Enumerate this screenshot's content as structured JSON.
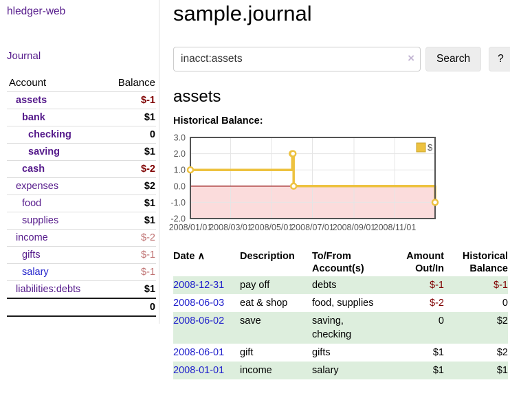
{
  "sidebar": {
    "brand": "hledger-web",
    "nav": [
      {
        "label": "Journal"
      }
    ],
    "accounts_table": {
      "col_account": "Account",
      "col_balance": "Balance",
      "rows": [
        {
          "name": "assets",
          "depth": 1,
          "bold": true,
          "name_color": "#551a8b",
          "balance": "$-1",
          "balance_color": "#7f0000",
          "balance_bold": true
        },
        {
          "name": "bank",
          "depth": 2,
          "bold": true,
          "name_color": "#551a8b",
          "balance": "$1",
          "balance_color": "#000000",
          "balance_bold": true
        },
        {
          "name": "checking",
          "depth": 3,
          "bold": true,
          "name_color": "#551a8b",
          "balance": "0",
          "balance_color": "#000000",
          "balance_bold": true
        },
        {
          "name": "saving",
          "depth": 3,
          "bold": true,
          "name_color": "#551a8b",
          "balance": "$1",
          "balance_color": "#000000",
          "balance_bold": true
        },
        {
          "name": "cash",
          "depth": 2,
          "bold": true,
          "name_color": "#551a8b",
          "balance": "$-2",
          "balance_color": "#7f0000",
          "balance_bold": true
        },
        {
          "name": "expenses",
          "depth": 1,
          "bold": false,
          "name_color": "#551a8b",
          "balance": "$2",
          "balance_color": "#000000",
          "balance_bold": true
        },
        {
          "name": "food",
          "depth": 2,
          "bold": false,
          "name_color": "#551a8b",
          "balance": "$1",
          "balance_color": "#000000",
          "balance_bold": true
        },
        {
          "name": "supplies",
          "depth": 2,
          "bold": false,
          "name_color": "#551a8b",
          "balance": "$1",
          "balance_color": "#000000",
          "balance_bold": true
        },
        {
          "name": "income",
          "depth": 1,
          "bold": false,
          "name_color": "#551a8b",
          "balance": "$-2",
          "balance_color": "#bf7171",
          "balance_bold": false
        },
        {
          "name": "gifts",
          "depth": 2,
          "bold": false,
          "name_color": "#551a8b",
          "balance": "$-1",
          "balance_color": "#bf7171",
          "balance_bold": false
        },
        {
          "name": "salary",
          "depth": 2,
          "bold": false,
          "name_color": "#2222cc",
          "balance": "$-1",
          "balance_color": "#bf7171",
          "balance_bold": false
        },
        {
          "name": "liabilities:debts",
          "depth": 1,
          "bold": false,
          "name_color": "#551a8b",
          "balance": "$1",
          "balance_color": "#000000",
          "balance_bold": true
        }
      ],
      "total": "0"
    }
  },
  "header": {
    "title": "sample.journal"
  },
  "search": {
    "query": "inacct:assets",
    "clear_icon": "×",
    "search_label": "Search",
    "help_label": "?"
  },
  "account_view": {
    "title": "assets",
    "chart_heading": "Historical Balance:"
  },
  "chart_data": {
    "type": "line",
    "step": true,
    "title": "Historical Balance",
    "xlim": [
      "2008-01-01",
      "2008-12-31"
    ],
    "ylim": [
      -2,
      3
    ],
    "x_ticks": [
      {
        "t": "2008-01-01",
        "label": "2008/01/01"
      },
      {
        "t": "2008-03-01",
        "label": "2008/03/01"
      },
      {
        "t": "2008-05-01",
        "label": "2008/05/01"
      },
      {
        "t": "2008-07-01",
        "label": "2008/07/01"
      },
      {
        "t": "2008-09-01",
        "label": "2008/09/01"
      },
      {
        "t": "2008-11-01",
        "label": "2008/11/01"
      }
    ],
    "y_ticks": [
      {
        "v": 3,
        "label": "3.0"
      },
      {
        "v": 2,
        "label": "2.0"
      },
      {
        "v": 1,
        "label": "1.0"
      },
      {
        "v": 0,
        "label": "0.0"
      },
      {
        "v": -1,
        "label": "-1.0"
      },
      {
        "v": -2,
        "label": "-2.0"
      }
    ],
    "series": [
      {
        "name": "$",
        "color": "#edc240",
        "marker_fill": "#ffffff",
        "points": [
          [
            "2008-01-01",
            1
          ],
          [
            "2008-06-01",
            2
          ],
          [
            "2008-06-02",
            2
          ],
          [
            "2008-06-03",
            0
          ],
          [
            "2008-12-31",
            -1
          ]
        ]
      }
    ],
    "legend": {
      "label": "$",
      "position": "top-right",
      "swatch_color": "#edc240",
      "swatch_border": "#c9a42c"
    },
    "colors": {
      "negative_region": "#fbdcdc",
      "zero_line": "#9c1f1f",
      "grid": "#e5e5e5",
      "border": "#545454",
      "labels": "#545454"
    }
  },
  "register": {
    "columns": [
      "Date",
      "Description",
      "To/From Account(s)",
      "Amount Out/In",
      "Historical Balance"
    ],
    "sort_icon": "∧",
    "rows": [
      {
        "date": "2008-12-31",
        "description": "pay off",
        "accounts": "debts",
        "amount": "$-1",
        "balance": "$-1",
        "shaded": true
      },
      {
        "date": "2008-06-03",
        "description": "eat & shop",
        "accounts": "food, supplies",
        "amount": "$-2",
        "balance": "0",
        "shaded": false
      },
      {
        "date": "2008-06-02",
        "description": "save",
        "accounts": "saving, checking",
        "amount": "0",
        "balance": "$2",
        "shaded": true
      },
      {
        "date": "2008-06-01",
        "description": "gift",
        "accounts": "gifts",
        "amount": "$1",
        "balance": "$2",
        "shaded": false
      },
      {
        "date": "2008-01-01",
        "description": "income",
        "accounts": "salary",
        "amount": "$1",
        "balance": "$1",
        "shaded": true
      }
    ]
  }
}
